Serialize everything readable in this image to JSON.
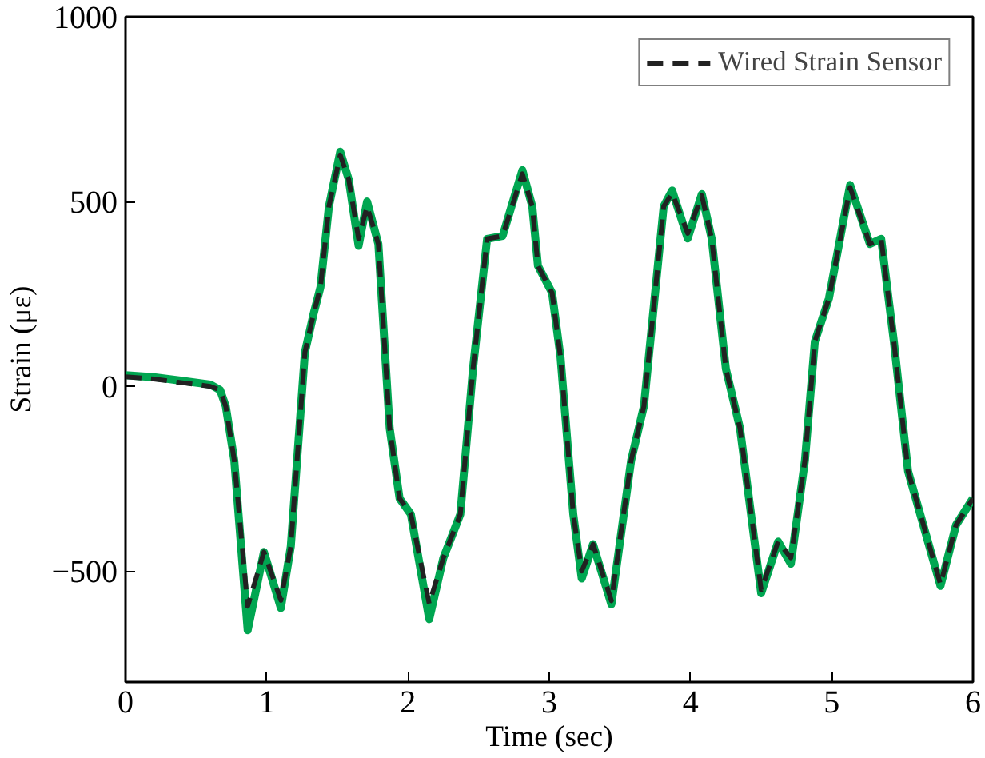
{
  "chart_data": {
    "type": "line",
    "xlabel": "Time (sec)",
    "ylabel": "Strain (με)",
    "xlim": [
      0,
      6
    ],
    "ylim": [
      -800,
      1000
    ],
    "xticks": [
      0,
      1,
      2,
      3,
      4,
      5,
      6
    ],
    "yticks": [
      -500,
      0,
      500,
      1000
    ],
    "grid": false,
    "legend": "top right",
    "marker": "none",
    "x": [
      0,
      0.2,
      0.4,
      0.6,
      0.67,
      0.71,
      0.77,
      0.865,
      0.98,
      1.1,
      1.17,
      1.27,
      1.33,
      1.38,
      1.44,
      1.52,
      1.58,
      1.65,
      1.71,
      1.79,
      1.87,
      1.94,
      2.02,
      2.15,
      2.25,
      2.37,
      2.46,
      2.56,
      2.67,
      2.81,
      2.88,
      2.92,
      3.02,
      3.08,
      3.17,
      3.23,
      3.31,
      3.44,
      3.58,
      3.67,
      3.81,
      3.87,
      3.98,
      4.08,
      4.15,
      4.25,
      4.35,
      4.5,
      4.62,
      4.71,
      4.81,
      4.88,
      4.98,
      5.13,
      5.27,
      5.35,
      5.44,
      5.54,
      5.77,
      5.88,
      6.0
    ],
    "series": [
      {
        "color": "#00a651",
        "line_style": "solid",
        "values": [
          30,
          25,
          15,
          5,
          -10,
          -54,
          -200,
          -660,
          -448,
          -600,
          -434,
          92,
          194,
          268,
          487,
          635,
          560,
          380,
          500,
          385,
          -113,
          -303,
          -346,
          -630,
          -464,
          -346,
          48,
          399,
          407,
          585,
          487,
          326,
          253,
          78,
          -346,
          -520,
          -427,
          -590,
          -200,
          -54,
          487,
          530,
          400,
          520,
          399,
          48,
          -113,
          -560,
          -420,
          -480,
          -200,
          121,
          238,
          545,
          385,
          399,
          121,
          -229,
          -540,
          -375,
          -303
        ]
      },
      {
        "name": "Wired Strain Sensor",
        "color": "#222222",
        "line_style": "dashed",
        "values": [
          26,
          20,
          10,
          0,
          -10,
          -54,
          -200,
          -595,
          -448,
          -579,
          -434,
          92,
          194,
          268,
          487,
          626,
          560,
          399,
          487,
          385,
          -113,
          -303,
          -346,
          -588,
          -464,
          -346,
          48,
          399,
          407,
          575,
          487,
          326,
          253,
          78,
          -346,
          -500,
          -427,
          -580,
          -200,
          -54,
          487,
          523,
          414,
          516,
          399,
          48,
          -113,
          -551,
          -420,
          -464,
          -200,
          121,
          238,
          538,
          385,
          399,
          121,
          -229,
          -536,
          -375,
          -303
        ]
      }
    ]
  }
}
